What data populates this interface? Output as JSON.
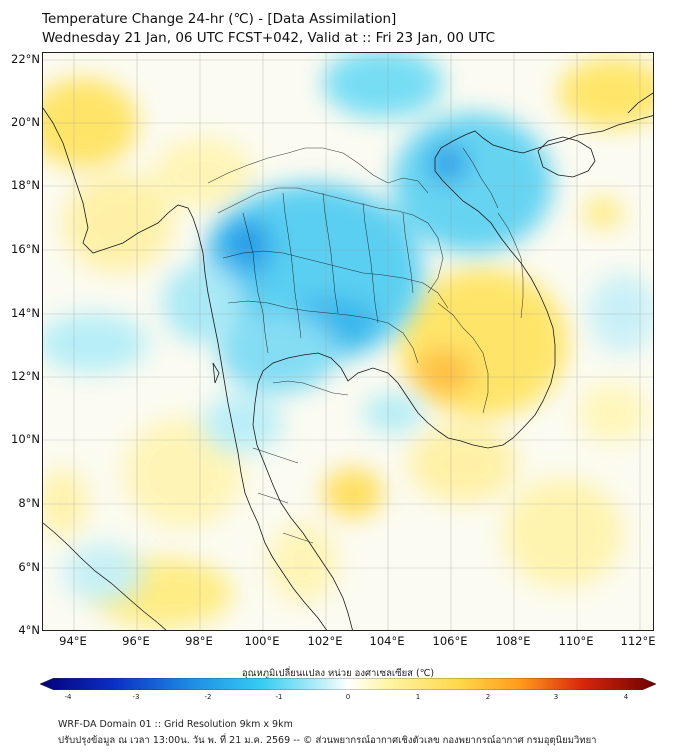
{
  "header": {
    "title": "Temperature Change 24-hr (℃) - [Data Assimilation]",
    "subtitle": "Wednesday 21 Jan, 06 UTC FCST+042, Valid at :: Fri 23 Jan, 00 UTC"
  },
  "map": {
    "region": "Southeast Asia (Thailand and neighbours)",
    "lon_range": [
      93,
      112.5
    ],
    "lat_range": [
      4,
      22.2
    ],
    "lat_labels": [
      "22°N",
      "20°N",
      "18°N",
      "16°N",
      "14°N",
      "12°N",
      "10°N",
      "8°N",
      "6°N",
      "4°N"
    ],
    "lon_labels": [
      "94°E",
      "96°E",
      "98°E",
      "100°E",
      "102°E",
      "104°E",
      "106°E",
      "108°E",
      "110°E",
      "112°E"
    ],
    "gridlines": true
  },
  "colorbar": {
    "label": "อุณหภูมิเปลี่ยนแปลง หน่วย องศาเซลเซียส (℃)",
    "ticks": [
      "-4",
      "-3",
      "-2",
      "-1",
      "0",
      "1",
      "2",
      "3",
      "4"
    ],
    "range": [
      -4,
      4
    ],
    "colors": [
      "#05007a",
      "#0b2fc4",
      "#1f8fe6",
      "#35cdf2",
      "#bff0f8",
      "#ffffff",
      "#fff6a8",
      "#ffd84a",
      "#ff9a1a",
      "#d8280c",
      "#6e0000"
    ]
  },
  "footer": {
    "line1": "WRF-DA Domain 01 :: Grid Resolution 9km x 9km",
    "line2": "ปรับปรุงข้อมูล ณ เวลา 13:00น. วัน พ. ที่ 21 ม.ค. 2569 -- © ส่วนพยากรณ์อากาศเชิงตัวเลข กองพยากรณ์อากาศ กรมอุตุนิยมวิทยา"
  }
}
